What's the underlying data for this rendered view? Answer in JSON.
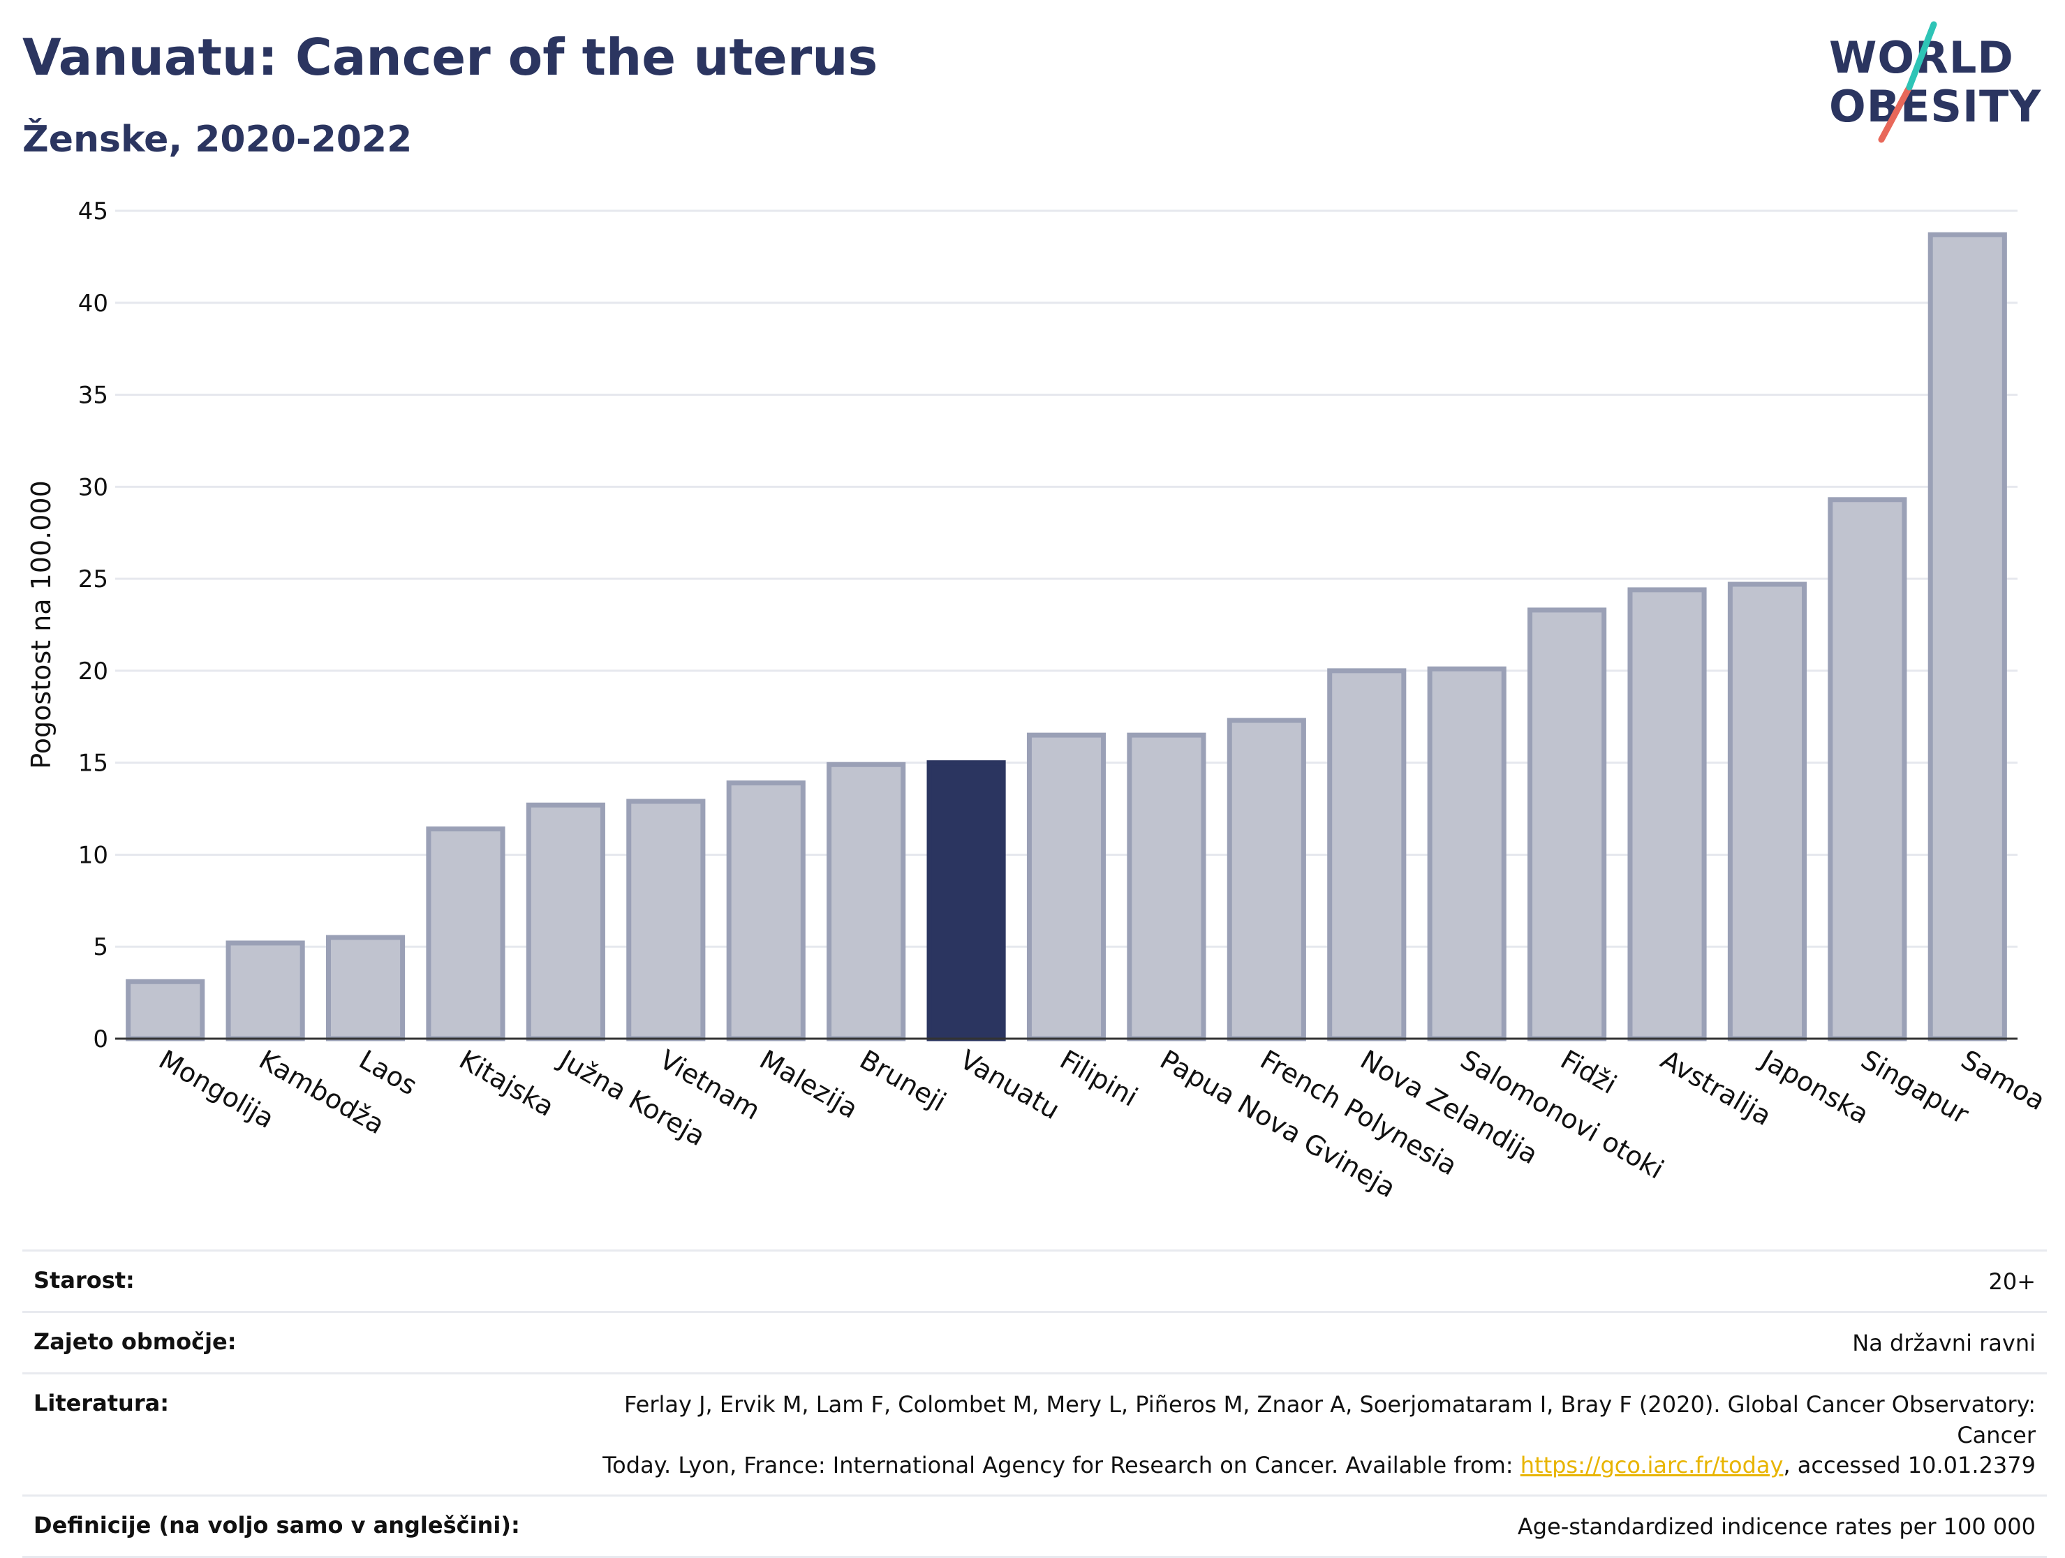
{
  "header": {
    "title": "Vanuatu: Cancer of the uterus",
    "subtitle": "Ženske, 2020-2022"
  },
  "logo": {
    "line1": "WORLD",
    "line2": "OBESITY",
    "accent_teal": "#2ec4b6",
    "accent_red": "#e8685a"
  },
  "colors": {
    "highlight": "#2b3560",
    "bar": "#c0c3cf",
    "bar_border": "#9aa0b6",
    "link": "#e8b400"
  },
  "chart_data": {
    "type": "bar",
    "categories": [
      "Mongolija",
      "Kambodža",
      "Laos",
      "Kitajska",
      "Južna Koreja",
      "Vietnam",
      "Malezija",
      "Bruneji",
      "Vanuatu",
      "Filipini",
      "Papua Nova Gvineja",
      "French Polynesia",
      "Nova Zelandija",
      "Salomonovi otoki",
      "Fidži",
      "Avstralija",
      "Japonska",
      "Singapur",
      "Samoa"
    ],
    "values": [
      3.1,
      5.2,
      5.5,
      11.4,
      12.7,
      12.9,
      13.9,
      14.9,
      15.0,
      16.5,
      16.5,
      17.3,
      20.0,
      20.1,
      23.3,
      24.4,
      24.7,
      29.3,
      43.7
    ],
    "highlight": "Vanuatu",
    "ylabel": "Pogostost na 100.000",
    "xlabel": "",
    "ylim": [
      0,
      45
    ],
    "yticks": [
      0,
      5,
      10,
      15,
      20,
      25,
      30,
      35,
      40,
      45
    ],
    "grid": true
  },
  "meta": {
    "age_label": "Starost:",
    "age_value": "20+",
    "area_label": "Zajeto območje:",
    "area_value": "Na državni ravni",
    "ref_label": "Literatura:",
    "ref_line1": "Ferlay J, Ervik M, Lam F, Colombet M, Mery L, Piñeros M, Znaor A, Soerjomataram I, Bray F (2020). Global Cancer Observatory: Cancer",
    "ref_line2_pre": "Today. Lyon, France: International Agency for Research on Cancer. Available from: ",
    "ref_link": "https://gco.iarc.fr/today",
    "ref_line2_post": ", accessed 10.01.2379",
    "def_label": "Definicije (na voljo samo v angleščini):",
    "def_value": "Age-standardized indicence rates per 100 000"
  }
}
